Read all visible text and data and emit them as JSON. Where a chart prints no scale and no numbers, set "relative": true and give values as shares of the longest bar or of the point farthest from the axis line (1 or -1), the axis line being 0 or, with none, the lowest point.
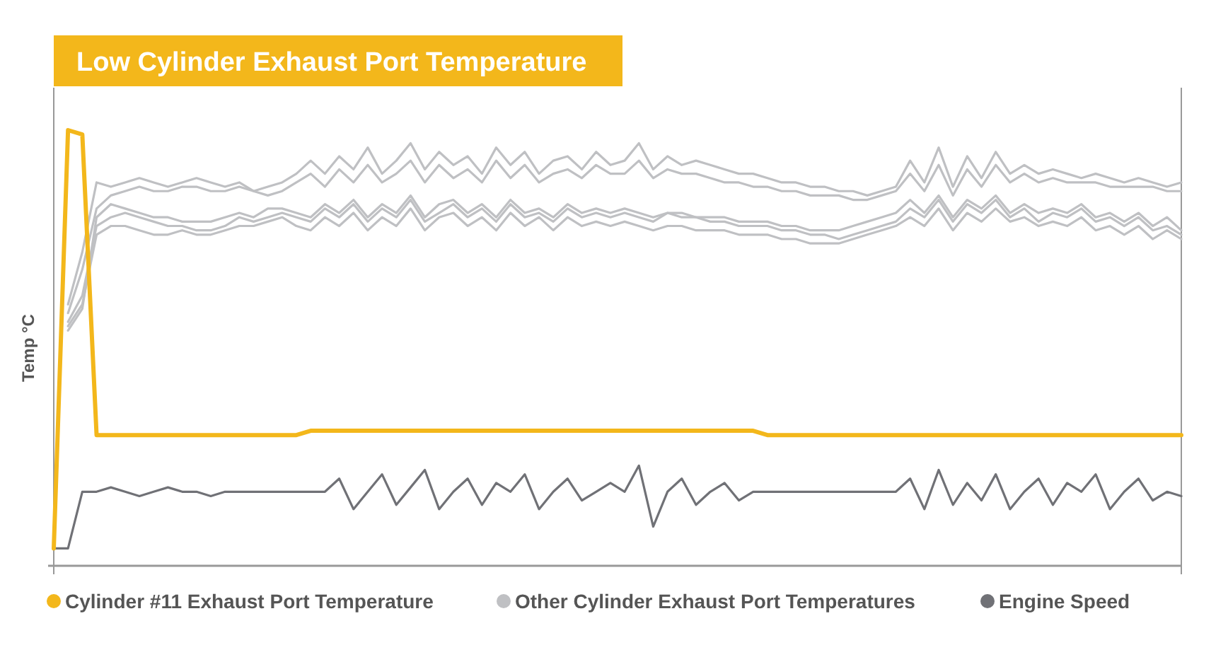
{
  "chart_data": {
    "type": "line",
    "title": "Low Cylinder Exhaust Port Temperature",
    "ylabel": "Temp °C",
    "relative": true,
    "legend": "bottom",
    "categories": [
      null,
      null,
      null,
      null,
      null,
      null,
      null,
      null,
      null,
      null,
      null,
      null,
      null,
      null,
      null,
      null,
      null,
      null,
      null,
      null,
      null,
      null,
      null,
      null,
      null,
      null,
      null,
      null,
      null,
      null,
      null,
      null,
      null,
      null,
      null,
      null,
      null,
      null,
      null,
      null,
      null,
      null,
      null,
      null,
      null,
      null,
      null,
      null,
      null,
      null,
      null,
      null,
      null,
      null,
      null,
      null,
      null,
      null,
      null,
      null,
      null,
      null,
      null,
      null,
      null,
      null,
      null,
      null,
      null,
      null,
      null,
      null,
      null,
      null,
      null,
      null,
      null,
      null,
      null,
      null
    ],
    "series": [
      {
        "name": "Cylinder #11 Exhaust Port Temperature",
        "color": "#f3b71b",
        "values": [
          0.04,
          1,
          0.99,
          0.3,
          0.3,
          0.3,
          0.3,
          0.3,
          0.3,
          0.3,
          0.3,
          0.3,
          0.3,
          0.3,
          0.3,
          0.3,
          0.3,
          0.3,
          0.31,
          0.31,
          0.31,
          0.31,
          0.31,
          0.31,
          0.31,
          0.31,
          0.31,
          0.31,
          0.31,
          0.31,
          0.31,
          0.31,
          0.31,
          0.31,
          0.31,
          0.31,
          0.31,
          0.31,
          0.31,
          0.31,
          0.31,
          0.31,
          0.31,
          0.31,
          0.31,
          0.31,
          0.31,
          0.31,
          0.31,
          0.31,
          0.3,
          0.3,
          0.3,
          0.3,
          0.3,
          0.3,
          0.3,
          0.3,
          0.3,
          0.3,
          0.3,
          0.3,
          0.3,
          0.3,
          0.3,
          0.3,
          0.3,
          0.3,
          0.3,
          0.3,
          0.3,
          0.3,
          0.3,
          0.3,
          0.3,
          0.3,
          0.3,
          0.3,
          0.3,
          0.3
        ]
      },
      {
        "name": "Other Cylinder Exhaust Port Temperatures",
        "color": "#bfc0c3",
        "values": [
          null,
          0.6,
          0.72,
          0.88,
          0.87,
          0.88,
          0.89,
          0.88,
          0.87,
          0.88,
          0.89,
          0.88,
          0.87,
          0.88,
          0.86,
          0.87,
          0.88,
          0.9,
          0.93,
          0.9,
          0.94,
          0.91,
          0.96,
          0.9,
          0.93,
          0.97,
          0.91,
          0.95,
          0.92,
          0.94,
          0.9,
          0.96,
          0.92,
          0.95,
          0.9,
          0.93,
          0.94,
          0.91,
          0.95,
          0.92,
          0.93,
          0.97,
          0.91,
          0.94,
          0.92,
          0.93,
          0.92,
          0.91,
          0.9,
          0.9,
          0.89,
          0.88,
          0.88,
          0.87,
          0.87,
          0.86,
          0.86,
          0.85,
          0.86,
          0.87,
          0.93,
          0.88,
          0.96,
          0.87,
          0.94,
          0.89,
          0.95,
          0.9,
          0.92,
          0.9,
          0.91,
          0.9,
          0.89,
          0.9,
          0.89,
          0.88,
          0.89,
          0.88,
          0.87,
          0.88
        ]
      },
      {
        "color": "#bfc0c3",
        "values": [
          null,
          0.58,
          0.68,
          0.82,
          0.85,
          0.86,
          0.87,
          0.86,
          0.86,
          0.87,
          0.87,
          0.86,
          0.86,
          0.87,
          0.86,
          0.85,
          0.86,
          0.88,
          0.9,
          0.87,
          0.91,
          0.88,
          0.92,
          0.88,
          0.9,
          0.93,
          0.88,
          0.92,
          0.89,
          0.91,
          0.88,
          0.93,
          0.89,
          0.92,
          0.88,
          0.9,
          0.91,
          0.89,
          0.92,
          0.9,
          0.9,
          0.93,
          0.89,
          0.91,
          0.9,
          0.9,
          0.89,
          0.88,
          0.88,
          0.87,
          0.87,
          0.86,
          0.86,
          0.85,
          0.85,
          0.85,
          0.84,
          0.84,
          0.85,
          0.86,
          0.9,
          0.86,
          0.92,
          0.85,
          0.91,
          0.87,
          0.92,
          0.88,
          0.9,
          0.88,
          0.89,
          0.88,
          0.88,
          0.88,
          0.87,
          0.87,
          0.87,
          0.87,
          0.86,
          0.86
        ]
      },
      {
        "color": "#bfc0c3",
        "values": [
          null,
          0.56,
          0.62,
          0.78,
          0.8,
          0.81,
          0.8,
          0.79,
          0.78,
          0.78,
          0.77,
          0.77,
          0.78,
          0.8,
          0.79,
          0.8,
          0.81,
          0.8,
          0.79,
          0.82,
          0.8,
          0.83,
          0.79,
          0.82,
          0.8,
          0.84,
          0.79,
          0.81,
          0.83,
          0.8,
          0.82,
          0.79,
          0.83,
          0.8,
          0.81,
          0.79,
          0.82,
          0.8,
          0.81,
          0.8,
          0.81,
          0.8,
          0.79,
          0.81,
          0.8,
          0.8,
          0.79,
          0.79,
          0.78,
          0.78,
          0.78,
          0.77,
          0.77,
          0.76,
          0.76,
          0.75,
          0.76,
          0.77,
          0.78,
          0.79,
          0.82,
          0.8,
          0.84,
          0.79,
          0.83,
          0.81,
          0.84,
          0.8,
          0.82,
          0.79,
          0.81,
          0.8,
          0.82,
          0.79,
          0.8,
          0.78,
          0.8,
          0.77,
          0.78,
          0.76
        ]
      },
      {
        "color": "#bfc0c3",
        "values": [
          null,
          0.55,
          0.6,
          0.76,
          0.78,
          0.78,
          0.77,
          0.76,
          0.76,
          0.77,
          0.76,
          0.76,
          0.77,
          0.78,
          0.78,
          0.79,
          0.8,
          0.78,
          0.77,
          0.8,
          0.78,
          0.81,
          0.77,
          0.8,
          0.78,
          0.82,
          0.77,
          0.8,
          0.81,
          0.78,
          0.8,
          0.77,
          0.81,
          0.78,
          0.8,
          0.77,
          0.8,
          0.78,
          0.79,
          0.78,
          0.79,
          0.78,
          0.77,
          0.78,
          0.78,
          0.77,
          0.77,
          0.77,
          0.76,
          0.76,
          0.76,
          0.75,
          0.75,
          0.74,
          0.74,
          0.74,
          0.75,
          0.76,
          0.77,
          0.78,
          0.8,
          0.78,
          0.82,
          0.77,
          0.81,
          0.79,
          0.82,
          0.79,
          0.8,
          0.78,
          0.79,
          0.78,
          0.8,
          0.77,
          0.78,
          0.76,
          0.78,
          0.75,
          0.77,
          0.75
        ]
      },
      {
        "color": "#bfc0c3",
        "values": [
          null,
          0.54,
          0.59,
          0.8,
          0.83,
          0.82,
          0.81,
          0.8,
          0.8,
          0.79,
          0.79,
          0.79,
          0.8,
          0.81,
          0.8,
          0.82,
          0.82,
          0.81,
          0.8,
          0.83,
          0.81,
          0.84,
          0.8,
          0.83,
          0.81,
          0.85,
          0.8,
          0.83,
          0.84,
          0.81,
          0.83,
          0.8,
          0.84,
          0.81,
          0.82,
          0.8,
          0.83,
          0.81,
          0.82,
          0.81,
          0.82,
          0.81,
          0.8,
          0.81,
          0.81,
          0.8,
          0.8,
          0.8,
          0.79,
          0.79,
          0.79,
          0.78,
          0.78,
          0.77,
          0.77,
          0.77,
          0.78,
          0.79,
          0.8,
          0.81,
          0.84,
          0.81,
          0.85,
          0.8,
          0.84,
          0.82,
          0.85,
          0.81,
          0.83,
          0.81,
          0.82,
          0.81,
          0.83,
          0.8,
          0.81,
          0.79,
          0.81,
          0.78,
          0.8,
          0.77
        ]
      },
      {
        "name": "Engine Speed",
        "color": "#707176",
        "values": [
          0.04,
          0.04,
          0.17,
          0.17,
          0.18,
          0.17,
          0.16,
          0.17,
          0.18,
          0.17,
          0.17,
          0.16,
          0.17,
          0.17,
          0.17,
          0.17,
          0.17,
          0.17,
          0.17,
          0.17,
          0.2,
          0.13,
          0.17,
          0.21,
          0.14,
          0.18,
          0.22,
          0.13,
          0.17,
          0.2,
          0.14,
          0.19,
          0.17,
          0.21,
          0.13,
          0.17,
          0.2,
          0.15,
          0.17,
          0.19,
          0.17,
          0.23,
          0.09,
          0.17,
          0.2,
          0.14,
          0.17,
          0.19,
          0.15,
          0.17,
          0.17,
          0.17,
          0.17,
          0.17,
          0.17,
          0.17,
          0.17,
          0.17,
          0.17,
          0.17,
          0.2,
          0.13,
          0.22,
          0.14,
          0.19,
          0.15,
          0.21,
          0.13,
          0.17,
          0.2,
          0.14,
          0.19,
          0.17,
          0.21,
          0.13,
          0.17,
          0.2,
          0.15,
          0.17,
          0.16
        ]
      }
    ]
  }
}
